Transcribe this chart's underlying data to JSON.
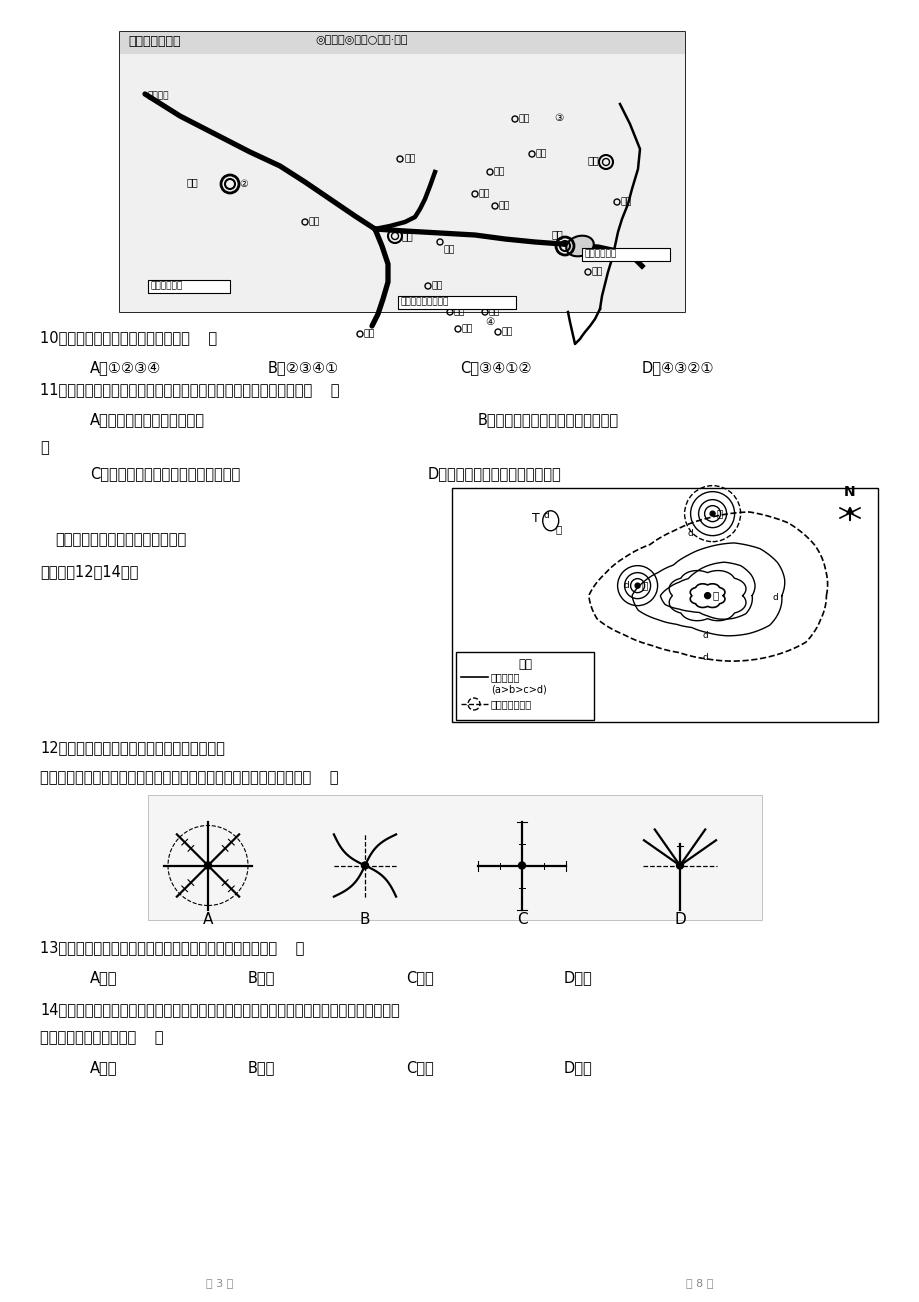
{
  "bg_color": "#ffffff",
  "text_color": "#000000",
  "q10_text": "10．城市等级体系从大到小依次是（    ）",
  "q10_A": "A．①②③④",
  "q10_B": "B．②③④①",
  "q10_C": "C．③④①②",
  "q10_D": "D．④③②①",
  "q11_text": "11．古雷的居民在寻求下列几组不同的服务时，合理的城市选择是（    ）",
  "q11_A": "A．到东山购买鱼虾等副食品",
  "q11_B": "B．到漳州购买彩电、冰箱等生活用",
  "q11_B2": "品",
  "q11_C": "C．到厦门看疑难重病，购买高档商品",
  "q11_D": "D．只要有钱，到哪里消费都一样",
  "q12_intro1": "如图为某城市地价等值线分布图。",
  "q12_intro2": "读图完成12～14题。",
  "q12_text": "12．交通通达度是影响地价的主要因素之一。",
  "q12_sub": "下列四幅交通干线示意图中，最能表示该城市交通干线分布状况的是（    ）",
  "q13_text": "13．图示甲、乙、丙、丁四区中心，交通拥堵最严重的是（    ）",
  "q13_A": "A．甲",
  "q13_B": "B．乙",
  "q13_C": "C．丙",
  "q13_D": "D．丁",
  "q14_text1": "14．该城市中心商务区、传统工业区、高新产业区和旅游观光区等功能区布局较为合理。其",
  "q14_text2": "中，传统工业区布局在（    ）",
  "q14_A": "A．甲",
  "q14_B": "B．乙",
  "q14_C": "C．丙",
  "q14_D": "D．丁",
  "diagram_labels": [
    "A",
    "B",
    "C",
    "D"
  ],
  "map_title": "闽南地区的聚落",
  "map_legend": "◎副省级◎市级○县级·乡村"
}
